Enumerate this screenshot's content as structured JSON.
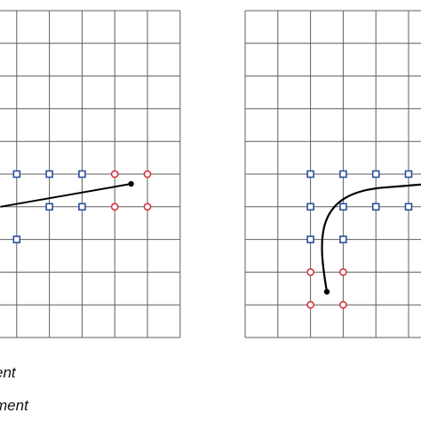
{
  "captions": [
    "ent",
    "ment"
  ],
  "colors": {
    "grid": "#5f5f5f",
    "square_marker": "#2b4f9e",
    "circle_marker": "#d7323c",
    "path": "#000000"
  },
  "panels": [
    {
      "name": "left",
      "squares": [
        [
          0,
          5
        ],
        [
          1,
          5
        ],
        [
          2,
          5
        ],
        [
          1,
          6
        ],
        [
          2,
          6
        ],
        [
          0,
          7
        ]
      ],
      "circles": [
        [
          3,
          5
        ],
        [
          4,
          5
        ],
        [
          3,
          6
        ],
        [
          4,
          6
        ]
      ],
      "path_type": "line",
      "path_start": [
        -0.5,
        6.0
      ],
      "path_end": [
        3.5,
        5.3
      ]
    },
    {
      "name": "right",
      "squares": [
        [
          2,
          5
        ],
        [
          3,
          5
        ],
        [
          4,
          5
        ],
        [
          5,
          5
        ],
        [
          2,
          6
        ],
        [
          3,
          6
        ],
        [
          4,
          6
        ],
        [
          5,
          6
        ],
        [
          2,
          7
        ],
        [
          3,
          7
        ]
      ],
      "circles": [
        [
          2,
          8
        ],
        [
          3,
          8
        ],
        [
          2,
          9
        ],
        [
          3,
          9
        ]
      ],
      "path_type": "curve",
      "path_start": [
        2.5,
        8.6
      ],
      "path_end": [
        5.5,
        5.3
      ]
    }
  ]
}
